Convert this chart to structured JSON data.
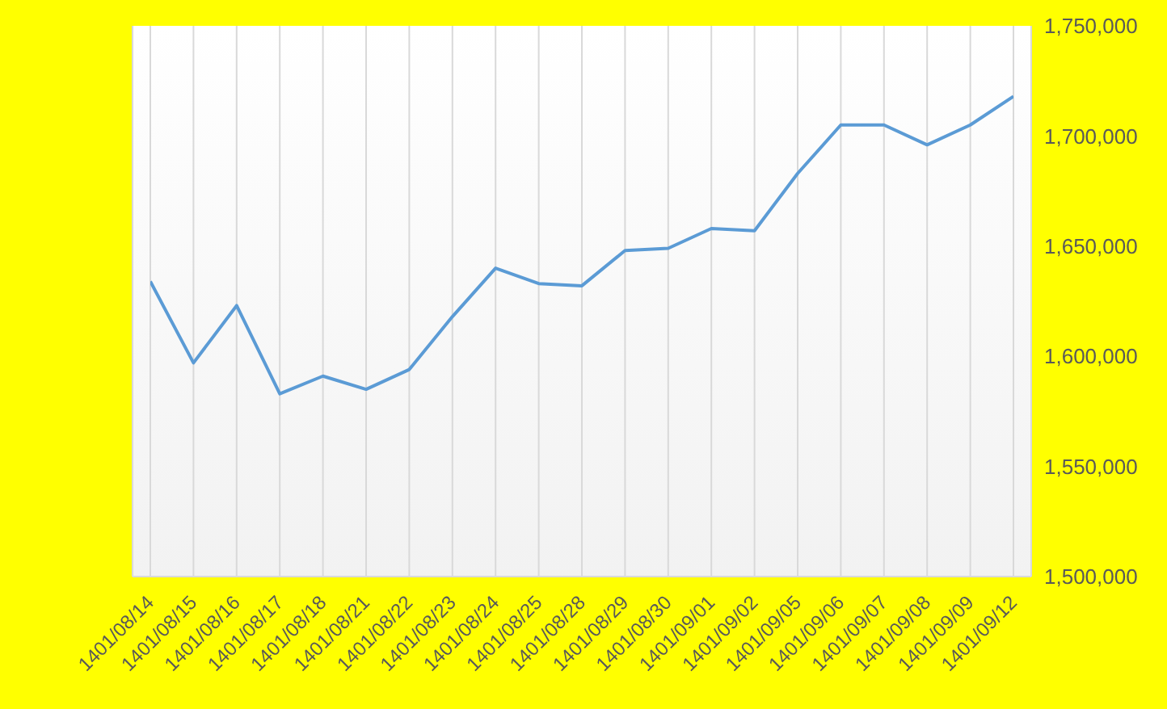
{
  "chart_data": {
    "type": "line",
    "categories": [
      "1401/08/14",
      "1401/08/15",
      "1401/08/16",
      "1401/08/17",
      "1401/08/18",
      "1401/08/21",
      "1401/08/22",
      "1401/08/23",
      "1401/08/24",
      "1401/08/25",
      "1401/08/28",
      "1401/08/29",
      "1401/08/30",
      "1401/09/01",
      "1401/09/02",
      "1401/09/05",
      "1401/09/06",
      "1401/09/07",
      "1401/09/08",
      "1401/09/09",
      "1401/09/12"
    ],
    "series": [
      {
        "color": "#5b9bd5",
        "values": [
          1634000,
          1597000,
          1623000,
          1583000,
          1591000,
          1585000,
          1594000,
          1618000,
          1640000,
          1633000,
          1632000,
          1648000,
          1649000,
          1658000,
          1657000,
          1683000,
          1705000,
          1705000,
          1696000,
          1705000,
          1718000
        ]
      }
    ],
    "ylim": [
      1500000,
      1750000
    ],
    "yticks": [
      {
        "value": 1500000,
        "label": "1,500,000"
      },
      {
        "value": 1550000,
        "label": "1,550,000"
      },
      {
        "value": 1600000,
        "label": "1,600,000"
      },
      {
        "value": 1650000,
        "label": "1,650,000"
      },
      {
        "value": 1700000,
        "label": "1,700,000"
      },
      {
        "value": 1750000,
        "label": "1,750,000"
      }
    ],
    "grid": "x",
    "legend": false,
    "marker": "none",
    "line_style": "solid"
  }
}
